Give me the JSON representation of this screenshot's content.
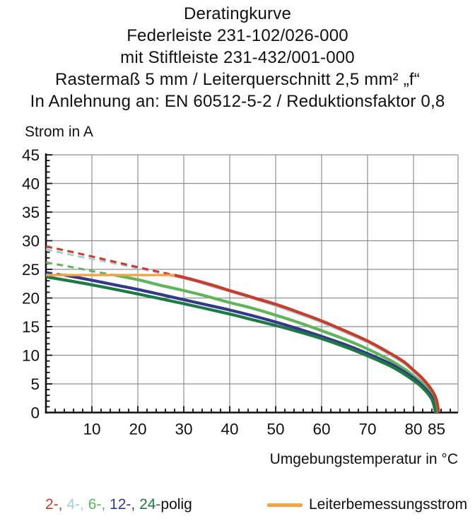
{
  "title_lines": [
    "Deratingkurve",
    "Federleiste 231-102/026-000",
    "mit Stiftleiste 231-432/001-000",
    "Rastermaß 5 mm / Leiterquerschnitt 2,5 mm² „f“",
    "In Anlehnung an: EN 60512-5-2 / Reduktionsfaktor 0,8"
  ],
  "y_axis": {
    "label": "Strom in A",
    "min": 0,
    "max": 45,
    "major_step": 5,
    "minor_step": 1,
    "tick_labels": [
      0,
      5,
      10,
      15,
      20,
      25,
      30,
      35,
      40,
      45
    ]
  },
  "x_axis": {
    "label": "Umgebungstemperatur in °C",
    "min": 0,
    "max": 90,
    "minor_step": 2,
    "tick_labels": [
      10,
      20,
      30,
      40,
      50,
      60,
      70,
      80,
      85
    ]
  },
  "legend": {
    "pole_items": [
      {
        "label": "2-",
        "color": "#cc3a28"
      },
      {
        "label": "4-",
        "color": "#a5cdd9"
      },
      {
        "label": "6-",
        "color": "#5fb65a"
      },
      {
        "label": "12-",
        "color": "#32388c"
      },
      {
        "label": "24-",
        "color": "#1d7a42"
      }
    ],
    "separator": ", ",
    "suffix": "polig",
    "suffix_color": "#111111",
    "rated": {
      "label": "Leiterbemessungsstrom",
      "color": "#f3a440"
    }
  },
  "colors": {
    "grid": "#8f8f8f",
    "axis": "#111111",
    "text": "#111111"
  },
  "chart_data": {
    "type": "line",
    "title": "Deratingkurve",
    "xlabel": "Umgebungstemperatur in °C",
    "ylabel": "Strom in A",
    "xlim": [
      0,
      90
    ],
    "ylim": [
      0,
      45
    ],
    "grid": true,
    "rated_current_A": 24,
    "series": [
      {
        "name": "4-polig",
        "color": "#a5cdd9",
        "dashed_points": [
          [
            0,
            28.5
          ],
          [
            7,
            27.3
          ],
          [
            14,
            26.2
          ],
          [
            20,
            25.2
          ],
          [
            27,
            24.0
          ]
        ],
        "solid_points": [
          [
            27,
            24.0
          ],
          [
            32,
            23.1
          ],
          [
            36,
            22.1
          ],
          [
            40,
            21.2
          ],
          [
            45,
            20.0
          ],
          [
            50,
            18.7
          ],
          [
            55,
            17.3
          ],
          [
            60,
            15.8
          ],
          [
            65,
            14.1
          ],
          [
            70,
            12.3
          ],
          [
            75,
            10.1
          ],
          [
            78,
            8.6
          ],
          [
            80,
            7.2
          ],
          [
            82,
            5.7
          ],
          [
            84,
            3.6
          ],
          [
            85.3,
            0
          ]
        ]
      },
      {
        "name": "2-polig",
        "color": "#cc3a28",
        "dashed_points": [
          [
            0,
            29.0
          ],
          [
            7,
            27.8
          ],
          [
            14,
            26.5
          ],
          [
            21,
            25.2
          ],
          [
            28,
            24.0
          ]
        ],
        "solid_points": [
          [
            28,
            24.0
          ],
          [
            32,
            23.2
          ],
          [
            36,
            22.3
          ],
          [
            40,
            21.3
          ],
          [
            45,
            20.1
          ],
          [
            50,
            18.9
          ],
          [
            55,
            17.5
          ],
          [
            60,
            16.0
          ],
          [
            65,
            14.3
          ],
          [
            70,
            12.5
          ],
          [
            75,
            10.3
          ],
          [
            78,
            8.8
          ],
          [
            80,
            7.4
          ],
          [
            82,
            5.9
          ],
          [
            84,
            3.9
          ],
          [
            85,
            2.2
          ],
          [
            85.5,
            0
          ]
        ]
      },
      {
        "name": "6-polig",
        "color": "#5fb65a",
        "dashed_points": [
          [
            0,
            26.2
          ],
          [
            5,
            25.5
          ],
          [
            10,
            24.7
          ],
          [
            15,
            24.0
          ]
        ],
        "solid_points": [
          [
            15,
            24.0
          ],
          [
            20,
            23.2
          ],
          [
            25,
            22.2
          ],
          [
            30,
            21.3
          ],
          [
            35,
            20.3
          ],
          [
            40,
            19.2
          ],
          [
            45,
            18.2
          ],
          [
            50,
            17.0
          ],
          [
            55,
            15.7
          ],
          [
            60,
            14.3
          ],
          [
            65,
            12.8
          ],
          [
            70,
            11.1
          ],
          [
            75,
            9.1
          ],
          [
            78,
            7.6
          ],
          [
            80,
            6.4
          ],
          [
            82,
            5.0
          ],
          [
            84,
            2.9
          ],
          [
            85,
            0
          ]
        ]
      },
      {
        "name": "12-polig",
        "color": "#32388c",
        "dashed_points": [
          [
            0,
            24.5
          ],
          [
            4,
            24.0
          ]
        ],
        "solid_points": [
          [
            4,
            24.0
          ],
          [
            10,
            23.1
          ],
          [
            15,
            22.3
          ],
          [
            20,
            21.5
          ],
          [
            25,
            20.6
          ],
          [
            30,
            19.7
          ],
          [
            35,
            18.8
          ],
          [
            40,
            17.9
          ],
          [
            45,
            16.9
          ],
          [
            50,
            15.8
          ],
          [
            55,
            14.6
          ],
          [
            60,
            13.3
          ],
          [
            65,
            11.9
          ],
          [
            70,
            10.3
          ],
          [
            75,
            8.5
          ],
          [
            78,
            7.1
          ],
          [
            80,
            6.0
          ],
          [
            82,
            4.6
          ],
          [
            84,
            2.7
          ],
          [
            84.8,
            0
          ]
        ]
      },
      {
        "name": "24-polig",
        "color": "#1d7a42",
        "solid_points": [
          [
            0,
            23.7
          ],
          [
            10,
            22.3
          ],
          [
            20,
            20.7
          ],
          [
            30,
            19.0
          ],
          [
            40,
            17.2
          ],
          [
            45,
            16.2
          ],
          [
            50,
            15.2
          ],
          [
            55,
            14.1
          ],
          [
            60,
            12.9
          ],
          [
            65,
            11.5
          ],
          [
            70,
            9.9
          ],
          [
            75,
            8.1
          ],
          [
            78,
            6.7
          ],
          [
            80,
            5.6
          ],
          [
            82,
            4.3
          ],
          [
            84,
            2.3
          ],
          [
            84.8,
            0
          ]
        ]
      },
      {
        "name": "Leiterbemessungsstrom",
        "color": "#f3a440",
        "points": [
          [
            0,
            24
          ],
          [
            28,
            24
          ]
        ]
      }
    ]
  }
}
